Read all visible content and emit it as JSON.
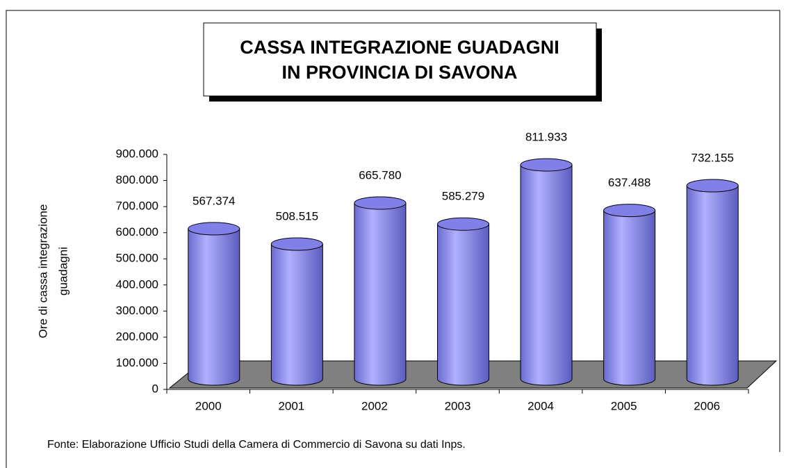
{
  "chart_data": {
    "type": "bar",
    "title": [
      "CASSA INTEGRAZIONE GUADAGNI",
      "IN PROVINCIA DI SAVONA"
    ],
    "y_label": [
      "Ore di cassa integrazione",
      "guadagni"
    ],
    "source": "Fonte: Elaborazione Ufficio Studi della Camera di Commercio di Savona su dati Inps.",
    "categories": [
      "2000",
      "2001",
      "2002",
      "2003",
      "2004",
      "2005",
      "2006"
    ],
    "values": [
      567374,
      508515,
      665780,
      585279,
      811933,
      637488,
      732155
    ],
    "value_labels": [
      "567.374",
      "508.515",
      "665.780",
      "585.279",
      "811.933",
      "637.488",
      "732.155"
    ],
    "color": "#9999ff",
    "ylim": [
      0,
      900000
    ],
    "yticks": [
      0,
      {
        "value": 100000,
        "label": "100.000"
      },
      {
        "value": 200000,
        "label": "200.000"
      },
      {
        "value": 300000,
        "label": "300.000"
      },
      {
        "value": 400000,
        "label": "400.000"
      },
      {
        "value": 500000,
        "label": "500.000"
      },
      {
        "value": 600000,
        "label": "600.000"
      },
      {
        "value": 700000,
        "label": "700.000"
      },
      {
        "value": 800000,
        "label": "800.000"
      },
      {
        "value": 900000,
        "label": "900.000"
      }
    ]
  }
}
